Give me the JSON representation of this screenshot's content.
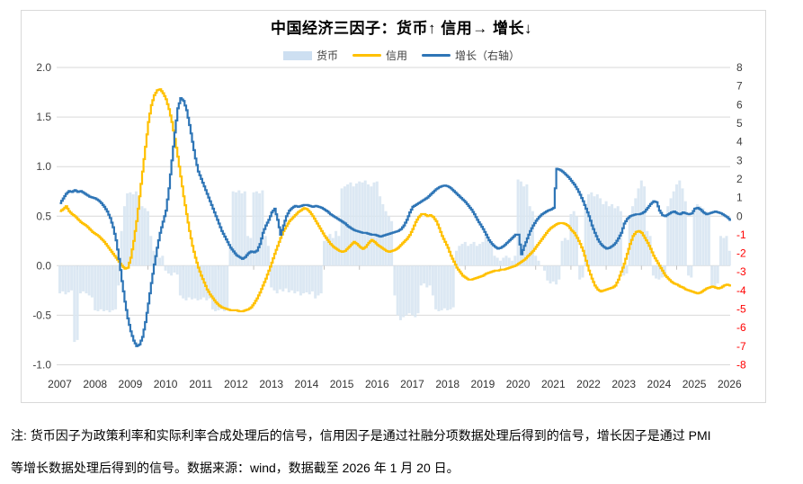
{
  "title": "中国经济三因子：货币↑ 信用→ 增长↓",
  "legend": [
    {
      "label": "货币",
      "type": "bar",
      "color": "#cddff1"
    },
    {
      "label": "信用",
      "type": "line",
      "color": "#ffc000"
    },
    {
      "label": "增长（右轴）",
      "type": "line",
      "color": "#2e75b6"
    }
  ],
  "note": {
    "line1": "注: 货币因子为政策利率和实际利率合成处理后的信号，信用因子是通过社融分项数据处理后得到的信号，增长因子是通过 PMI",
    "line2": "等增长数据处理后得到的信号。数据来源：wind，数据截至 2026 年 1 月 20 日。"
  },
  "chart_data": {
    "type": "combo-bar-line",
    "x_start_year": 2007,
    "points_per_year": 12,
    "x_tick_labels": [
      "2007",
      "2008",
      "2009",
      "2010",
      "2011",
      "2012",
      "2013",
      "2014",
      "2015",
      "2016",
      "2017",
      "2018",
      "2019",
      "2020",
      "2021",
      "2022",
      "2023",
      "2024",
      "2025",
      "2026"
    ],
    "left_axis": {
      "min": -1.0,
      "max": 2.0,
      "tick_labels": [
        "2.0",
        "1.5",
        "1.0",
        "0.5",
        "0.0",
        "-0.5",
        "-1.0"
      ],
      "tick_values": [
        2.0,
        1.5,
        1.0,
        0.5,
        0.0,
        -0.5,
        -1.0
      ],
      "label_color": "#404040"
    },
    "right_axis": {
      "min": -8,
      "max": 8,
      "tick_values": [
        8,
        7,
        6,
        5,
        4,
        3,
        2,
        1,
        0,
        -1,
        -2,
        -3,
        -4,
        -5,
        -6,
        -7,
        -8
      ],
      "label_color": "#404040",
      "negative_label_color": "#ff0000"
    },
    "grid_color": "#d9d9d9",
    "series": [
      {
        "name": "货币",
        "type": "bar",
        "axis": "left",
        "color": "#d8e5f2",
        "values": [
          -0.28,
          -0.26,
          -0.29,
          -0.27,
          -0.25,
          -0.77,
          -0.75,
          -0.28,
          -0.26,
          -0.28,
          -0.3,
          -0.32,
          -0.45,
          -0.46,
          -0.44,
          -0.46,
          -0.45,
          -0.47,
          -0.45,
          -0.44,
          -0.2,
          0.35,
          0.6,
          0.73,
          0.74,
          0.72,
          0.75,
          0.7,
          0.6,
          0.58,
          0.55,
          0.3,
          0.15,
          0.1,
          0.08,
          0.1,
          -0.05,
          -0.08,
          -0.1,
          -0.07,
          -0.09,
          -0.3,
          -0.33,
          -0.35,
          -0.32,
          -0.34,
          -0.33,
          -0.35,
          -0.34,
          -0.32,
          -0.35,
          -0.33,
          -0.44,
          -0.46,
          -0.45,
          -0.44,
          -0.46,
          -0.45,
          0.2,
          0.75,
          0.74,
          0.76,
          0.73,
          0.75,
          0.3,
          0.28,
          0.74,
          0.75,
          0.73,
          0.76,
          0.3,
          0.2,
          -0.22,
          -0.25,
          -0.28,
          -0.24,
          -0.26,
          -0.23,
          -0.27,
          -0.25,
          -0.28,
          -0.26,
          -0.3,
          -0.28,
          -0.27,
          -0.29,
          -0.26,
          -0.33,
          -0.3,
          -0.28,
          0.25,
          0.3,
          0.32,
          0.28,
          0.35,
          0.3,
          0.78,
          0.8,
          0.82,
          0.84,
          0.8,
          0.83,
          0.85,
          0.84,
          0.86,
          0.82,
          0.8,
          0.84,
          0.85,
          0.7,
          0.62,
          0.55,
          0.5,
          0.45,
          -0.3,
          -0.5,
          -0.55,
          -0.52,
          -0.5,
          -0.48,
          -0.5,
          -0.52,
          -0.48,
          -0.2,
          -0.18,
          -0.22,
          -0.2,
          -0.3,
          -0.44,
          -0.46,
          -0.45,
          -0.43,
          -0.45,
          -0.44,
          -0.42,
          0.15,
          0.2,
          0.22,
          0.24,
          0.2,
          0.22,
          0.24,
          0.2,
          0.22,
          0.24,
          0.31,
          0.28,
          0.22,
          0.1,
          0.08,
          0.05,
          0.08,
          0.1,
          0.08,
          0.05,
          0.1,
          0.87,
          0.85,
          0.8,
          0.82,
          0.6,
          0.55,
          0.1,
          0.05,
          0.0,
          -0.05,
          -0.15,
          -0.18,
          -0.16,
          -0.19,
          -0.14,
          0.25,
          0.28,
          0.26,
          0.52,
          0.55,
          0.5,
          -0.14,
          -0.12,
          0.6,
          0.72,
          0.74,
          0.7,
          0.72,
          0.68,
          0.62,
          0.65,
          0.6,
          0.62,
          0.58,
          0.6,
          0.55,
          -0.1,
          -0.08,
          0.5,
          0.6,
          0.68,
          0.78,
          0.86,
          0.8,
          0.35,
          0.3,
          -0.1,
          -0.13,
          -0.14,
          -0.12,
          -0.1,
          0.6,
          0.68,
          0.75,
          0.82,
          0.86,
          0.78,
          0.65,
          -0.1,
          -0.12,
          0.58,
          0.62,
          0.6,
          0.58,
          0.55,
          0.52,
          -0.2,
          -0.22,
          -0.18,
          0.3,
          0.28,
          0.3,
          0.15
        ]
      },
      {
        "name": "信用",
        "type": "line",
        "axis": "left",
        "color": "#ffc000",
        "values": [
          0.55,
          0.57,
          0.6,
          0.55,
          0.52,
          0.5,
          0.47,
          0.44,
          0.42,
          0.4,
          0.37,
          0.34,
          0.32,
          0.3,
          0.27,
          0.24,
          0.2,
          0.16,
          0.12,
          0.08,
          0.04,
          0.0,
          -0.03,
          -0.02,
          0.08,
          0.25,
          0.45,
          0.7,
          0.95,
          1.2,
          1.45,
          1.62,
          1.72,
          1.77,
          1.78,
          1.74,
          1.68,
          1.58,
          1.45,
          1.28,
          1.1,
          0.9,
          0.7,
          0.52,
          0.35,
          0.2,
          0.08,
          -0.02,
          -0.1,
          -0.17,
          -0.24,
          -0.29,
          -0.33,
          -0.37,
          -0.4,
          -0.42,
          -0.43,
          -0.44,
          -0.45,
          -0.45,
          -0.45,
          -0.46,
          -0.46,
          -0.45,
          -0.44,
          -0.42,
          -0.38,
          -0.33,
          -0.27,
          -0.2,
          -0.13,
          -0.05,
          0.03,
          0.12,
          0.2,
          0.28,
          0.35,
          0.4,
          0.45,
          0.48,
          0.51,
          0.54,
          0.56,
          0.58,
          0.57,
          0.54,
          0.5,
          0.45,
          0.4,
          0.35,
          0.3,
          0.26,
          0.22,
          0.19,
          0.17,
          0.15,
          0.14,
          0.15,
          0.18,
          0.21,
          0.24,
          0.22,
          0.19,
          0.17,
          0.19,
          0.23,
          0.26,
          0.24,
          0.21,
          0.19,
          0.17,
          0.15,
          0.14,
          0.15,
          0.16,
          0.18,
          0.21,
          0.24,
          0.27,
          0.31,
          0.37,
          0.44,
          0.49,
          0.52,
          0.52,
          0.5,
          0.51,
          0.49,
          0.45,
          0.38,
          0.3,
          0.24,
          0.18,
          0.1,
          0.04,
          -0.02,
          -0.06,
          -0.1,
          -0.12,
          -0.14,
          -0.14,
          -0.13,
          -0.12,
          -0.11,
          -0.1,
          -0.08,
          -0.07,
          -0.06,
          -0.05,
          -0.05,
          -0.04,
          -0.04,
          -0.03,
          -0.02,
          -0.01,
          0.0,
          0.02,
          0.04,
          0.06,
          0.09,
          0.12,
          0.15,
          0.19,
          0.23,
          0.27,
          0.31,
          0.35,
          0.38,
          0.4,
          0.42,
          0.43,
          0.43,
          0.42,
          0.4,
          0.36,
          0.33,
          0.28,
          0.22,
          0.15,
          0.05,
          -0.05,
          -0.13,
          -0.2,
          -0.24,
          -0.26,
          -0.25,
          -0.24,
          -0.23,
          -0.22,
          -0.2,
          -0.14,
          -0.06,
          0.02,
          0.12,
          0.22,
          0.3,
          0.34,
          0.35,
          0.33,
          0.28,
          0.23,
          0.17,
          0.1,
          0.05,
          0.0,
          -0.05,
          -0.1,
          -0.13,
          -0.16,
          -0.18,
          -0.19,
          -0.21,
          -0.22,
          -0.24,
          -0.25,
          -0.26,
          -0.27,
          -0.28,
          -0.27,
          -0.25,
          -0.23,
          -0.22,
          -0.21,
          -0.22,
          -0.23,
          -0.22,
          -0.2,
          -0.19,
          -0.2
        ]
      },
      {
        "name": "增长",
        "type": "line",
        "axis": "right",
        "color": "#2e75b6",
        "values": [
          0.7,
          0.95,
          1.2,
          1.35,
          1.3,
          1.4,
          1.3,
          1.35,
          1.25,
          1.15,
          1.05,
          1.0,
          0.95,
          0.85,
          0.7,
          0.5,
          0.25,
          -0.1,
          -0.6,
          -1.3,
          -2.3,
          -3.5,
          -4.6,
          -5.5,
          -6.2,
          -6.7,
          -7.0,
          -6.9,
          -6.5,
          -5.7,
          -4.7,
          -3.6,
          -2.6,
          -1.7,
          -0.9,
          -0.3,
          0.3,
          1.5,
          3.0,
          4.5,
          5.8,
          6.35,
          6.2,
          5.7,
          4.9,
          4.0,
          3.1,
          2.4,
          2.0,
          1.6,
          1.2,
          0.8,
          0.4,
          0.0,
          -0.4,
          -0.8,
          -1.1,
          -1.4,
          -1.7,
          -1.9,
          -2.1,
          -2.2,
          -2.3,
          -2.2,
          -2.0,
          -1.9,
          -1.95,
          -1.85,
          -1.5,
          -0.9,
          -0.5,
          -0.2,
          0.2,
          0.4,
          -0.2,
          -1.0,
          -0.5,
          0.0,
          0.3,
          0.45,
          0.55,
          0.5,
          0.55,
          0.6,
          0.6,
          0.55,
          0.5,
          0.55,
          0.5,
          0.45,
          0.35,
          0.25,
          0.1,
          0.0,
          -0.1,
          -0.2,
          -0.3,
          -0.4,
          -0.55,
          -0.65,
          -0.75,
          -0.8,
          -0.85,
          -0.9,
          -0.9,
          -0.95,
          -1.0,
          -1.0,
          -1.05,
          -1.1,
          -1.05,
          -1.0,
          -0.95,
          -0.9,
          -0.85,
          -0.8,
          -0.7,
          -0.5,
          -0.2,
          0.2,
          0.5,
          0.6,
          0.7,
          0.8,
          0.9,
          1.0,
          1.15,
          1.3,
          1.45,
          1.55,
          1.62,
          1.65,
          1.6,
          1.5,
          1.35,
          1.2,
          1.05,
          0.9,
          0.75,
          0.55,
          0.35,
          0.1,
          -0.2,
          -0.45,
          -0.7,
          -1.0,
          -1.3,
          -1.5,
          -1.65,
          -1.75,
          -1.7,
          -1.6,
          -1.45,
          -1.3,
          -1.15,
          -1.0,
          -1.0,
          -2.05,
          -1.6,
          -1.2,
          -0.8,
          -0.5,
          -0.25,
          -0.05,
          0.1,
          0.2,
          0.3,
          0.35,
          0.45,
          2.55,
          2.5,
          2.4,
          2.25,
          2.1,
          1.9,
          1.7,
          1.45,
          1.15,
          0.8,
          0.4,
          0.0,
          -0.5,
          -0.9,
          -1.25,
          -1.5,
          -1.65,
          -1.75,
          -1.7,
          -1.6,
          -1.45,
          -1.2,
          -0.9,
          -0.4,
          -0.15,
          0.0,
          0.05,
          0.1,
          0.1,
          0.15,
          0.25,
          0.45,
          0.65,
          0.8,
          0.75,
          0.3,
          0.05,
          0.0,
          0.1,
          0.2,
          0.25,
          0.15,
          0.1,
          0.2,
          0.15,
          0.1,
          0.15,
          0.4,
          0.45,
          0.35,
          0.2,
          0.1,
          0.15,
          0.2,
          0.25,
          0.2,
          0.15,
          0.05,
          -0.05,
          -0.2
        ]
      }
    ]
  }
}
